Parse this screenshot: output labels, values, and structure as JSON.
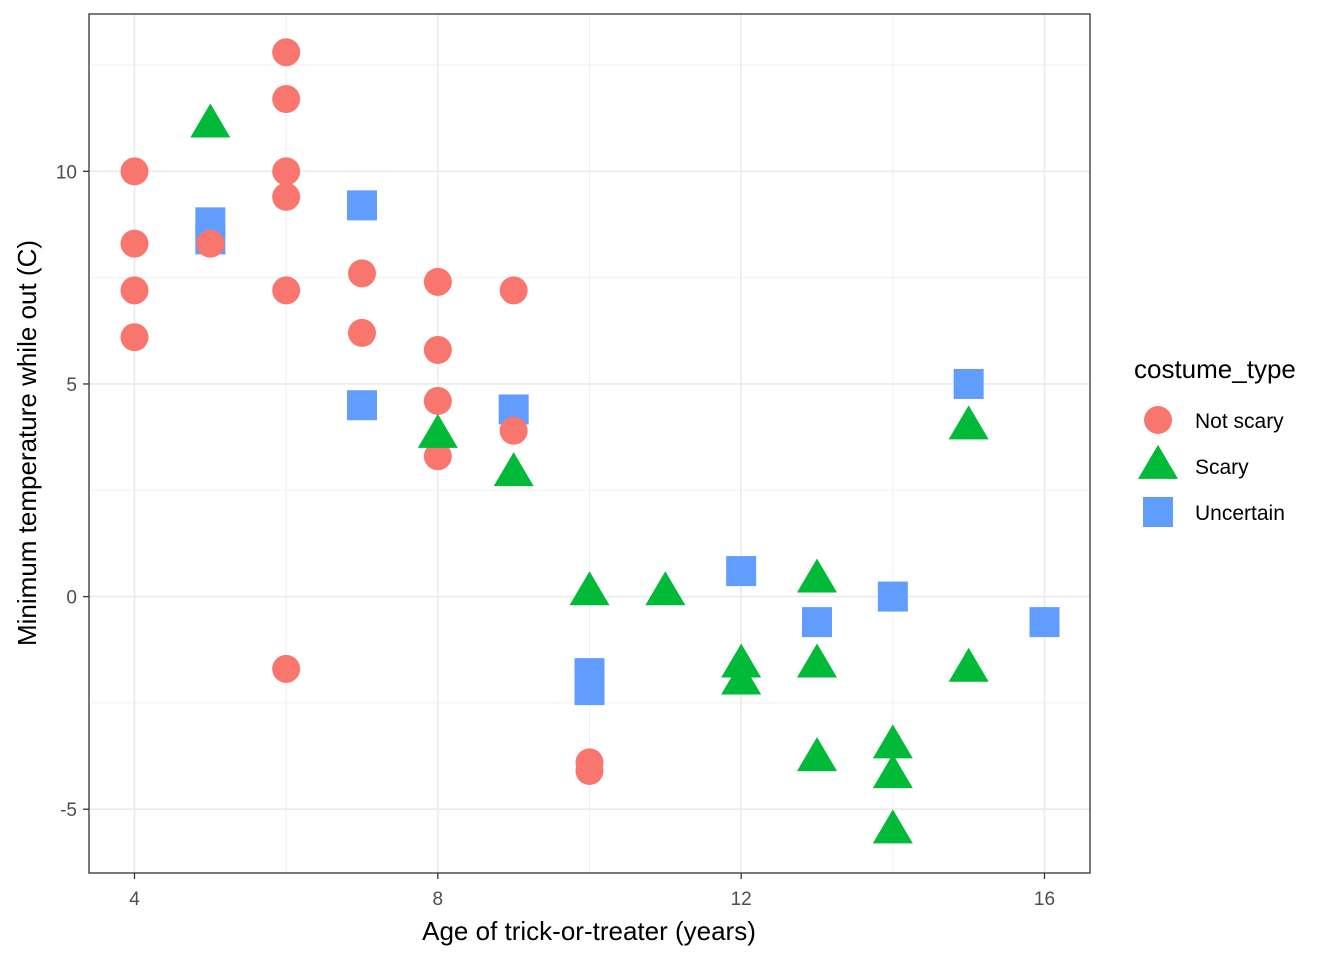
{
  "chart_data": {
    "type": "scatter",
    "title": "",
    "xlabel": "Age of trick-or-treater (years)",
    "ylabel": "Minimum temperature while out (C)",
    "xlim": [
      3.4,
      16.6
    ],
    "ylim": [
      -6.5,
      13.7
    ],
    "x_ticks": [
      4,
      8,
      12,
      16
    ],
    "y_ticks": [
      -5,
      0,
      5,
      10
    ],
    "x_tick_labels": [
      "4",
      "8",
      "12",
      "16"
    ],
    "y_tick_labels": [
      "-5",
      "0",
      "5",
      "10"
    ],
    "grid": true,
    "legend": {
      "title": "costume_type",
      "position": "right"
    },
    "series": [
      {
        "name": "Not scary",
        "color": "#F8766D",
        "shape": "circle",
        "points": [
          {
            "x": 4,
            "y": 10.0
          },
          {
            "x": 4,
            "y": 8.3
          },
          {
            "x": 4,
            "y": 7.2
          },
          {
            "x": 4,
            "y": 6.1
          },
          {
            "x": 5,
            "y": 8.3
          },
          {
            "x": 6,
            "y": 12.8
          },
          {
            "x": 6,
            "y": 11.7
          },
          {
            "x": 6,
            "y": 10.0
          },
          {
            "x": 6,
            "y": 9.4
          },
          {
            "x": 6,
            "y": 7.2
          },
          {
            "x": 6,
            "y": -1.7
          },
          {
            "x": 7,
            "y": 7.6
          },
          {
            "x": 7,
            "y": 6.2
          },
          {
            "x": 8,
            "y": 7.4
          },
          {
            "x": 8,
            "y": 5.8
          },
          {
            "x": 8,
            "y": 4.6
          },
          {
            "x": 8,
            "y": 3.3
          },
          {
            "x": 9,
            "y": 7.2
          },
          {
            "x": 9,
            "y": 3.9
          },
          {
            "x": 10,
            "y": -3.9
          },
          {
            "x": 10,
            "y": -4.1
          }
        ]
      },
      {
        "name": "Scary",
        "color": "#00BA38",
        "shape": "triangle",
        "points": [
          {
            "x": 5,
            "y": 11.1
          },
          {
            "x": 8,
            "y": 3.8
          },
          {
            "x": 9,
            "y": 2.9
          },
          {
            "x": 10,
            "y": 0.1
          },
          {
            "x": 11,
            "y": 0.1
          },
          {
            "x": 12,
            "y": -1.6
          },
          {
            "x": 12,
            "y": -2.0
          },
          {
            "x": 13,
            "y": 0.4
          },
          {
            "x": 13,
            "y": -1.6
          },
          {
            "x": 13,
            "y": -3.8
          },
          {
            "x": 14,
            "y": -3.5
          },
          {
            "x": 14,
            "y": -4.2
          },
          {
            "x": 14,
            "y": -5.5
          },
          {
            "x": 15,
            "y": 4.0
          },
          {
            "x": 15,
            "y": -1.7
          }
        ]
      },
      {
        "name": "Uncertain",
        "color": "#619CFF",
        "shape": "square",
        "points": [
          {
            "x": 5,
            "y": 8.8
          },
          {
            "x": 5,
            "y": 8.4
          },
          {
            "x": 7,
            "y": 9.2
          },
          {
            "x": 7,
            "y": 4.5
          },
          {
            "x": 9,
            "y": 4.4
          },
          {
            "x": 10,
            "y": -1.8
          },
          {
            "x": 10,
            "y": -2.2
          },
          {
            "x": 12,
            "y": 0.6
          },
          {
            "x": 13,
            "y": -0.6
          },
          {
            "x": 14,
            "y": 0.0
          },
          {
            "x": 15,
            "y": 5.0
          },
          {
            "x": 16,
            "y": -0.6
          }
        ]
      }
    ]
  }
}
